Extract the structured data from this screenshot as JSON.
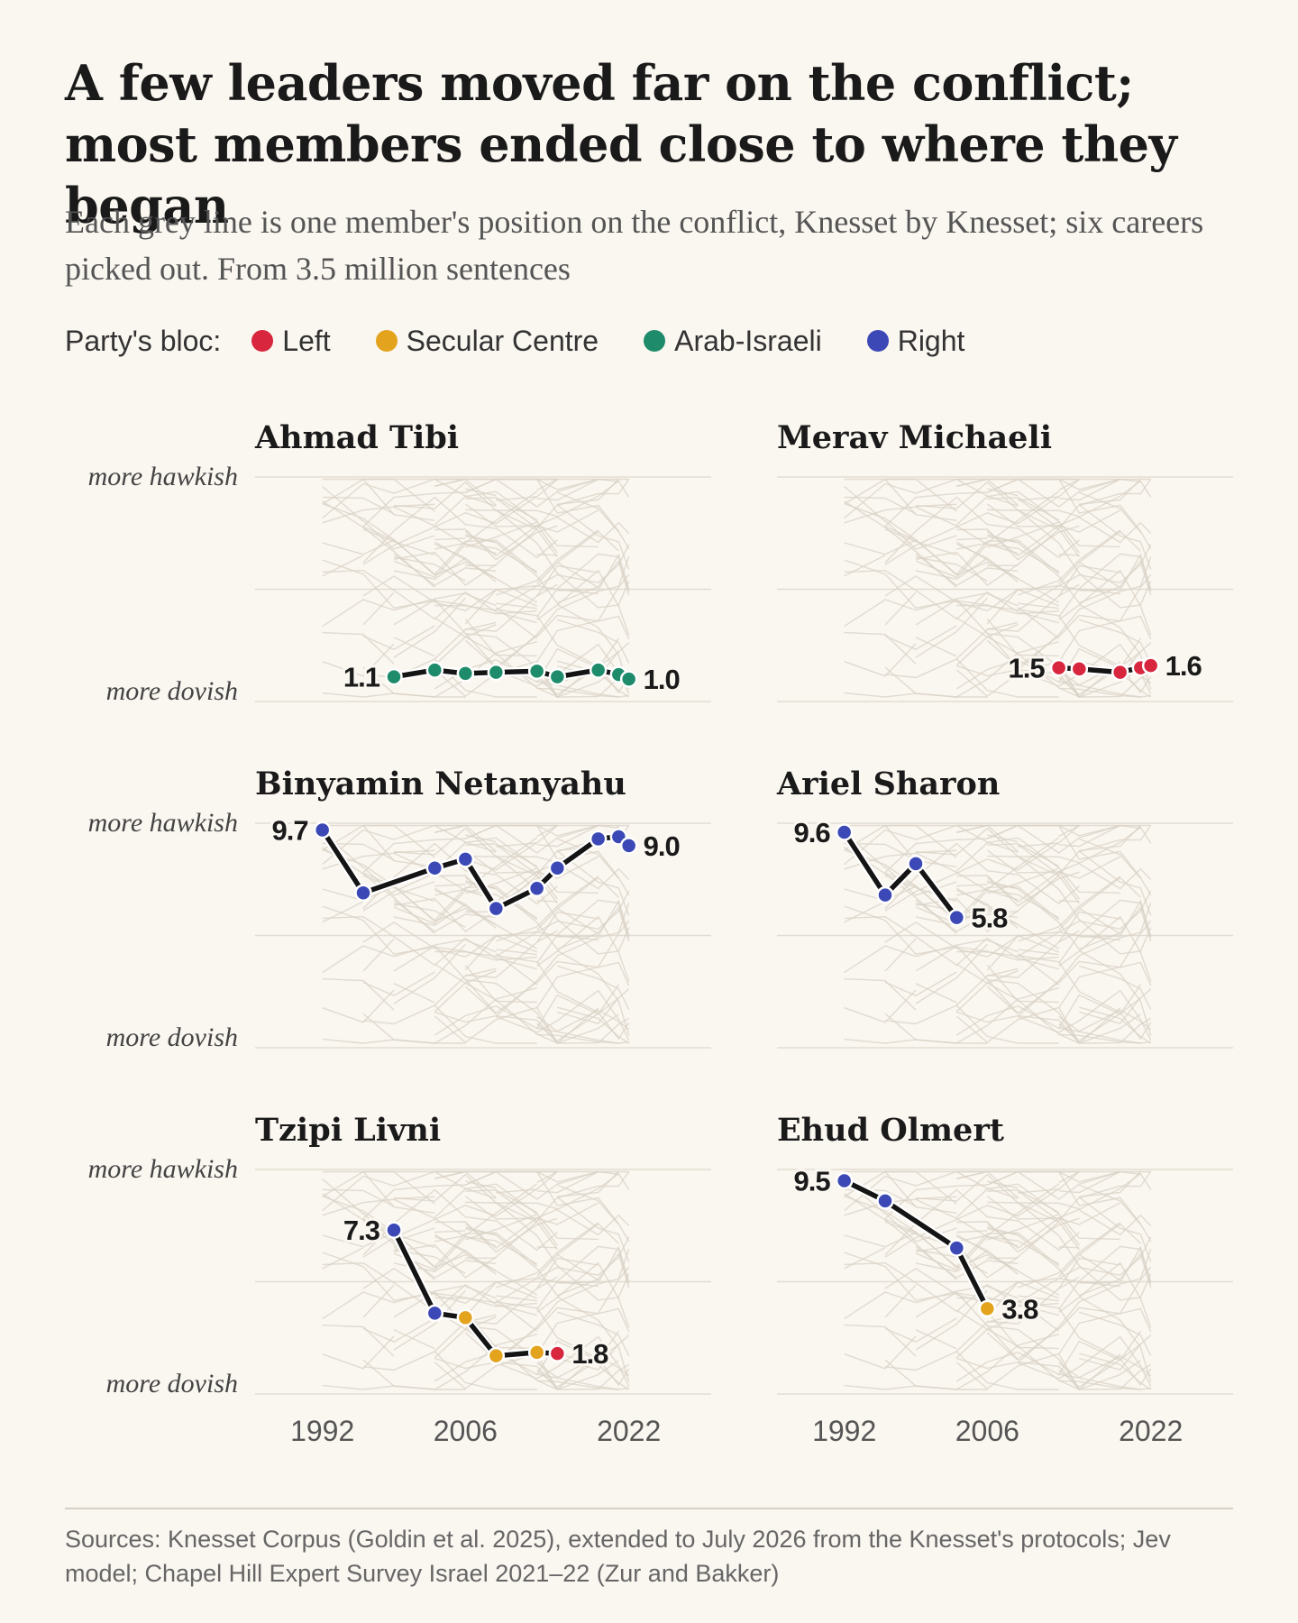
{
  "title": "A few leaders moved far on the conflict; most members ended close to where they began",
  "subtitle": "Each grey line is one member's position on the conflict, Knesset by Knesset; six careers picked out. From 3.5 million sentences",
  "legend": {
    "title": "Party's bloc:",
    "items": [
      {
        "label": "Left",
        "color": "#d7263d"
      },
      {
        "label": "Secular Centre",
        "color": "#e3a31d"
      },
      {
        "label": "Arab-Israeli",
        "color": "#1e8c6a"
      },
      {
        "label": "Right",
        "color": "#3b48b5"
      }
    ]
  },
  "axis": {
    "top_label": "more hawkish",
    "bottom_label": "more dovish",
    "x_ticks": [
      1992,
      2006,
      2022
    ]
  },
  "chart_data": {
    "type": "line",
    "grid": true,
    "x_range": [
      1987,
      2029
    ],
    "y_range": [
      0,
      10
    ],
    "panels": [
      {
        "name": "Ahmad Tibi",
        "start_label": "1.1",
        "end_label": "1.0",
        "x": [
          1999,
          2003,
          2006,
          2009,
          2013,
          2015,
          2019,
          2021,
          2022
        ],
        "y": [
          1.1,
          1.4,
          1.25,
          1.3,
          1.35,
          1.1,
          1.4,
          1.2,
          1.0
        ],
        "bloc": [
          "Arab-Israeli",
          "Arab-Israeli",
          "Arab-Israeli",
          "Arab-Israeli",
          "Arab-Israeli",
          "Arab-Israeli",
          "Arab-Israeli",
          "Arab-Israeli",
          "Arab-Israeli"
        ]
      },
      {
        "name": "Merav Michaeli",
        "start_label": "1.5",
        "end_label": "1.6",
        "x": [
          2013,
          2015,
          2019,
          2021,
          2022
        ],
        "y": [
          1.5,
          1.45,
          1.3,
          1.5,
          1.6
        ],
        "bloc": [
          "Left",
          "Left",
          "Left",
          "Left",
          "Left"
        ]
      },
      {
        "name": "Binyamin Netanyahu",
        "start_label": "9.7",
        "end_label": "9.0",
        "x": [
          1992,
          1996,
          2003,
          2006,
          2009,
          2013,
          2015,
          2019,
          2021,
          2022
        ],
        "y": [
          9.7,
          6.9,
          8.0,
          8.4,
          6.2,
          7.1,
          8.0,
          9.3,
          9.4,
          9.0
        ],
        "bloc": [
          "Right",
          "Right",
          "Right",
          "Right",
          "Right",
          "Right",
          "Right",
          "Right",
          "Right",
          "Right"
        ]
      },
      {
        "name": "Ariel Sharon",
        "start_label": "9.6",
        "end_label": "5.8",
        "x": [
          1992,
          1996,
          1999,
          2003
        ],
        "y": [
          9.6,
          6.8,
          8.2,
          5.8
        ],
        "bloc": [
          "Right",
          "Right",
          "Right",
          "Right"
        ]
      },
      {
        "name": "Tzipi Livni",
        "start_label": "7.3",
        "end_label": "1.8",
        "x": [
          1999,
          2003,
          2006,
          2009,
          2013,
          2015
        ],
        "y": [
          7.3,
          3.6,
          3.4,
          1.7,
          1.85,
          1.8
        ],
        "bloc": [
          "Right",
          "Right",
          "Secular Centre",
          "Secular Centre",
          "Secular Centre",
          "Left"
        ]
      },
      {
        "name": "Ehud Olmert",
        "start_label": "9.5",
        "end_label": "3.8",
        "x": [
          1992,
          1996,
          2003,
          2006
        ],
        "y": [
          9.5,
          8.6,
          6.5,
          3.8
        ],
        "bloc": [
          "Right",
          "Right",
          "Right",
          "Secular Centre"
        ]
      }
    ]
  },
  "source": "Sources: Knesset Corpus (Goldin et al. 2025), extended to July 2026 from the Knesset's protocols; Jev model; Chapel Hill Expert Survey Israel 2021–22 (Zur and Bakker)"
}
